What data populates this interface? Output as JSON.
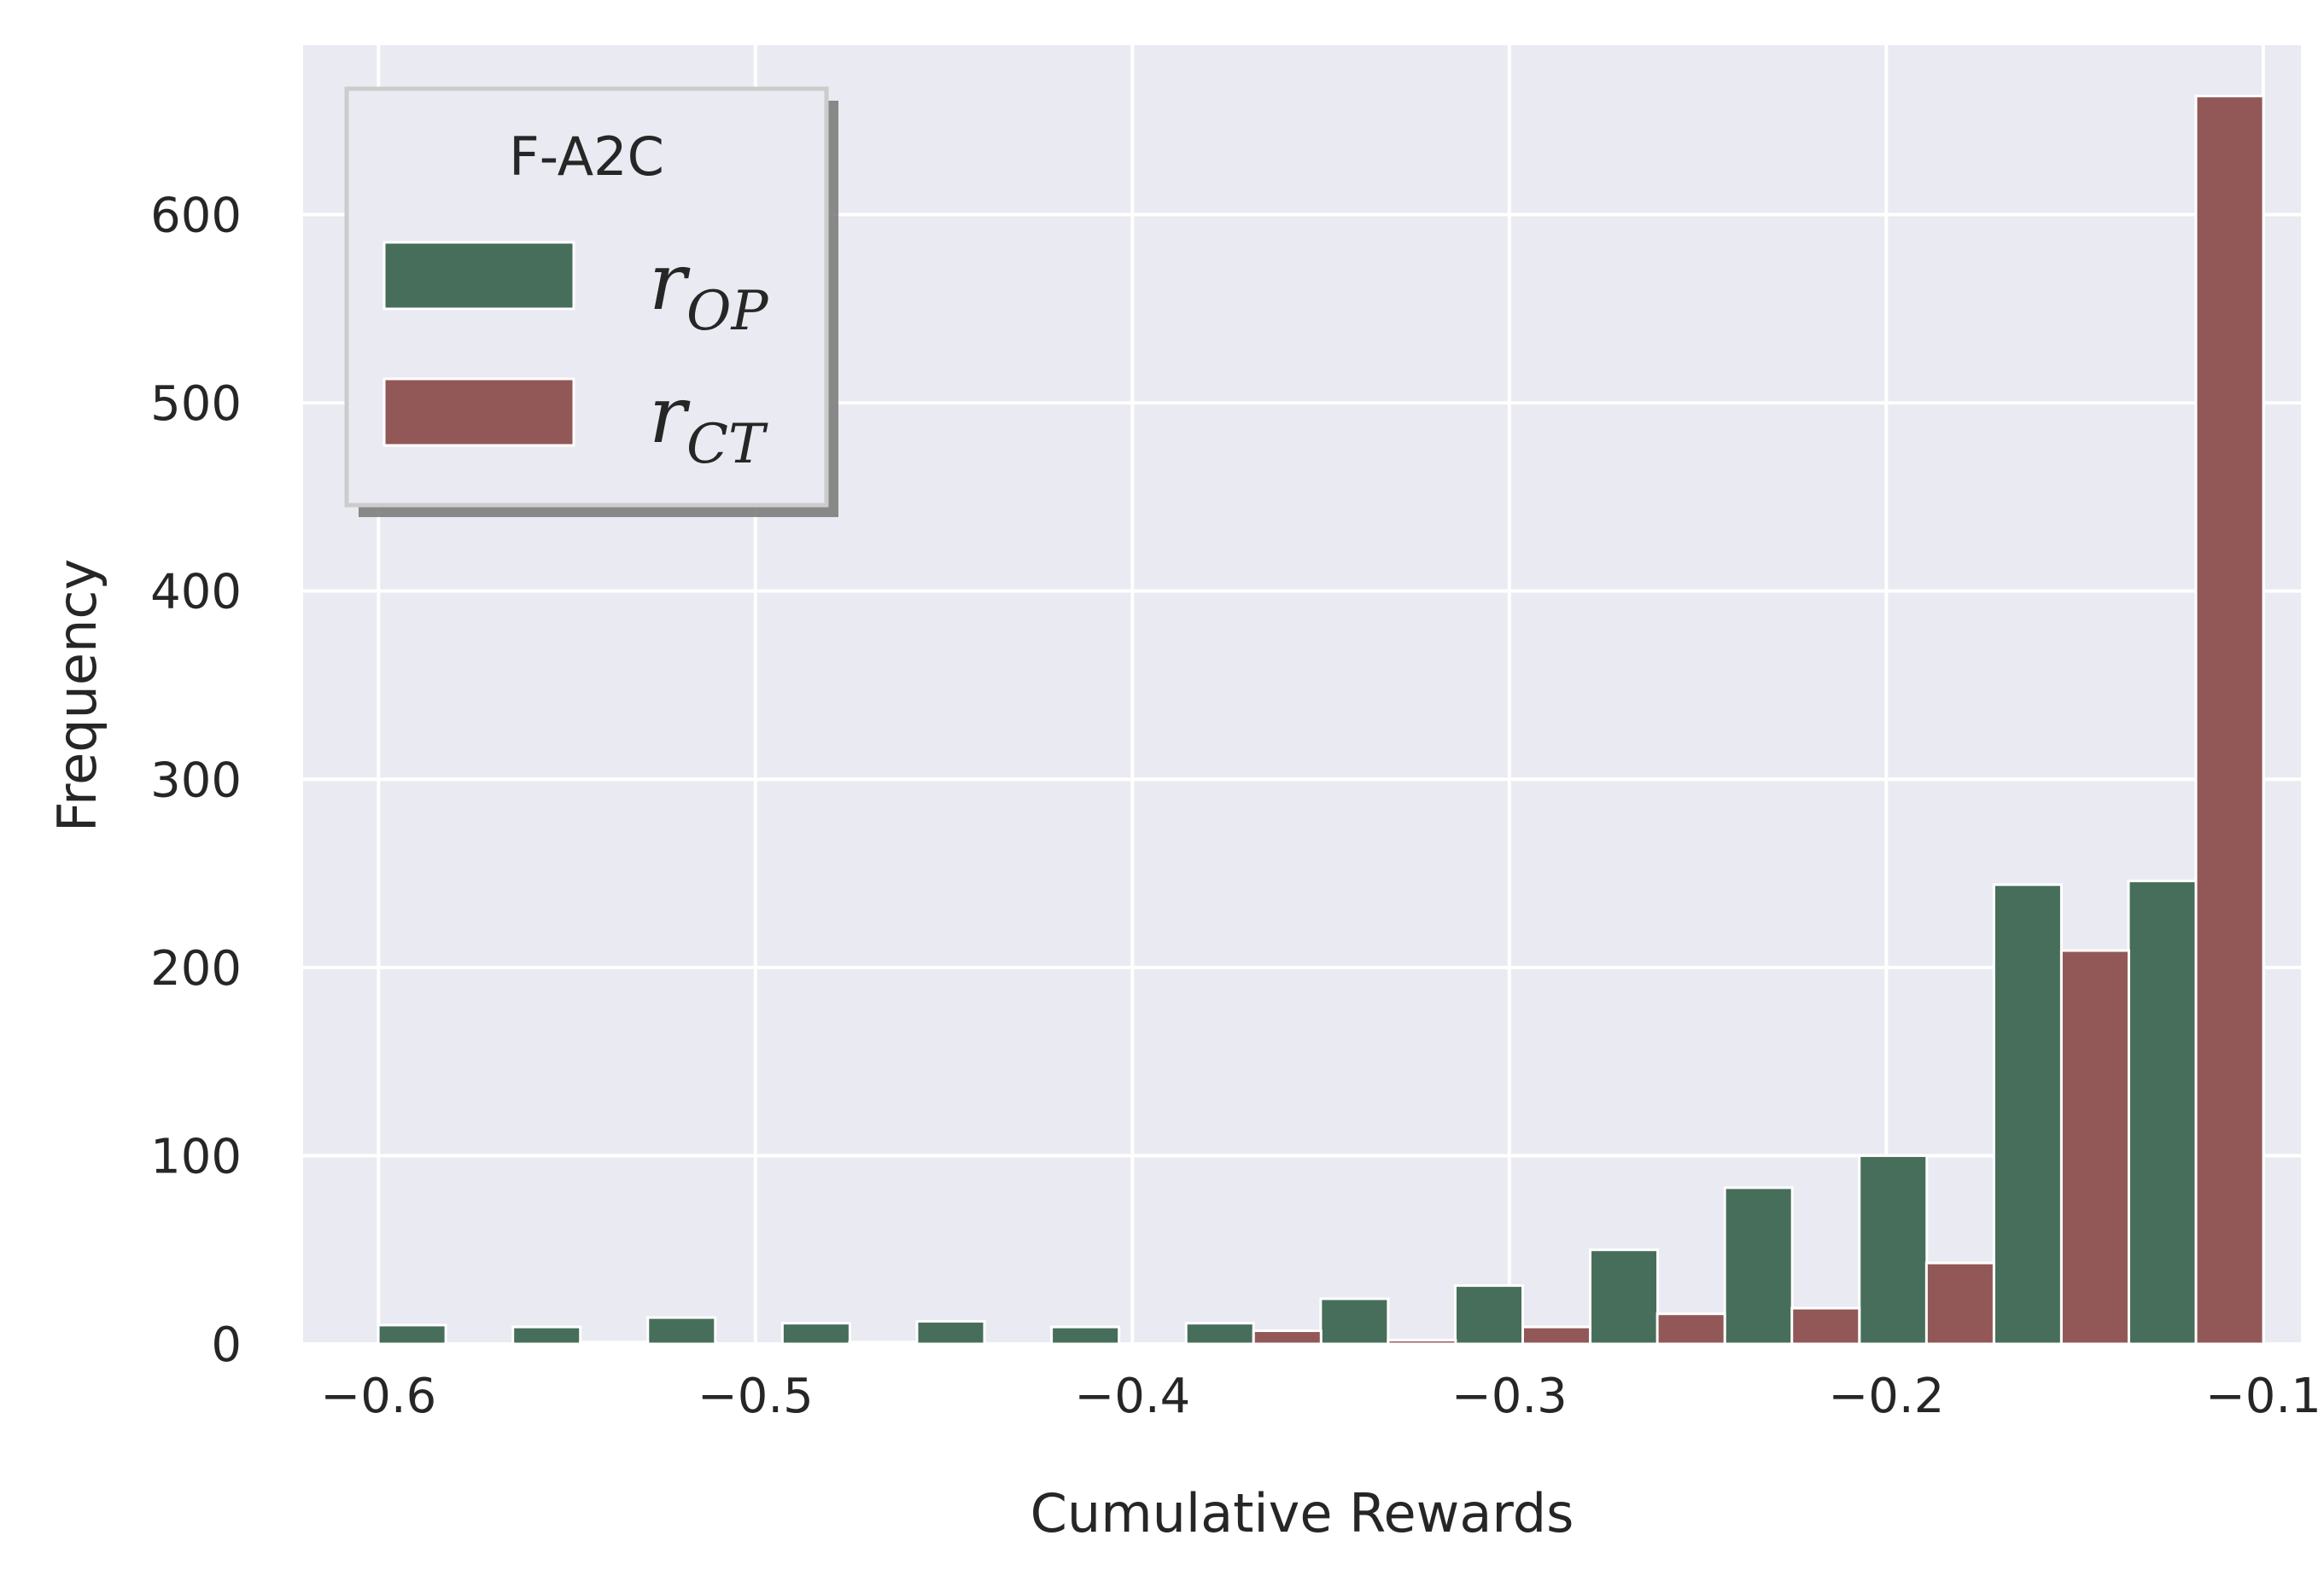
{
  "chart_data": {
    "type": "bar",
    "xlabel": "Cumulative Rewards",
    "ylabel": "Frequency",
    "xlim": [
      -0.62,
      -0.09
    ],
    "ylim": [
      0,
      690
    ],
    "grid": true,
    "xticks": [
      -0.6,
      -0.5,
      -0.4,
      -0.3,
      -0.2,
      -0.1
    ],
    "xtick_labels": [
      "−0.6",
      "−0.5",
      "−0.4",
      "−0.3",
      "−0.2",
      "−0.1"
    ],
    "yticks": [
      0,
      100,
      200,
      300,
      400,
      500,
      600
    ],
    "ytick_labels": [
      "0",
      "100",
      "200",
      "300",
      "400",
      "500",
      "600"
    ],
    "bin_width": 0.0179,
    "legend": {
      "title": "F-A2C",
      "placement": "top-left",
      "entries": [
        {
          "base": "r",
          "sub": "OP",
          "color": "#476e5a"
        },
        {
          "base": "r",
          "sub": "CT",
          "color": "#925857"
        }
      ]
    },
    "series": [
      {
        "name": "r_OP",
        "color": "#476e5a",
        "x": [
          -0.5911,
          -0.5554,
          -0.5196,
          -0.4839,
          -0.4482,
          -0.4125,
          -0.3768,
          -0.3411,
          -0.3054,
          -0.2696,
          -0.2339,
          -0.1982,
          -0.1625,
          -0.1268
        ],
        "values": [
          10,
          9,
          14,
          11,
          12,
          9,
          11,
          24,
          31,
          50,
          83,
          100,
          244,
          246
        ]
      },
      {
        "name": "r_CT",
        "color": "#925857",
        "x": [
          -0.5732,
          -0.5375,
          -0.5018,
          -0.4661,
          -0.4304,
          -0.3946,
          -0.3589,
          -0.3232,
          -0.2875,
          -0.2518,
          -0.2161,
          -0.1804,
          -0.1446,
          -0.1089
        ],
        "values": [
          0,
          1,
          0,
          1,
          0,
          0,
          7,
          2,
          9,
          16,
          19,
          43,
          209,
          663
        ]
      }
    ]
  }
}
